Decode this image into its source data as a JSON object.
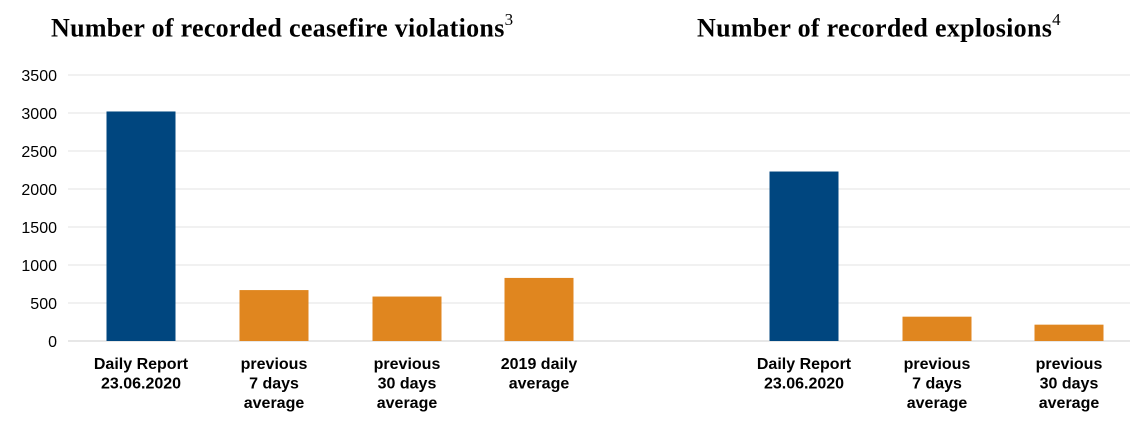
{
  "colors": {
    "primary": "#00467f",
    "secondary": "#e0861f",
    "grid": "#e3e3e3"
  },
  "chart_data": [
    {
      "type": "bar",
      "title": "Number of recorded ceasefire violations",
      "title_footnote": "3",
      "categories": [
        [
          "Daily Report",
          "23.06.2020"
        ],
        [
          "previous",
          "7 days",
          "average"
        ],
        [
          "previous",
          "30 days",
          "average"
        ],
        [
          "2019 daily",
          "average"
        ]
      ],
      "values": [
        3020,
        670,
        585,
        830
      ],
      "colors": [
        "#00467f",
        "#e0861f",
        "#e0861f",
        "#e0861f"
      ],
      "ylim": [
        0,
        3500
      ],
      "yticks": [
        "0",
        "500",
        "1000",
        "1500",
        "2000",
        "2500",
        "3000",
        "3500"
      ],
      "grid": true
    },
    {
      "type": "bar",
      "title": "Number of recorded explosions",
      "title_footnote": "4",
      "categories": [
        [
          "Daily Report",
          "23.06.2020"
        ],
        [
          "previous",
          "7 days",
          "average"
        ],
        [
          "previous",
          "30 days",
          "average"
        ]
      ],
      "values": [
        2230,
        320,
        215
      ],
      "colors": [
        "#00467f",
        "#e0861f",
        "#e0861f"
      ],
      "ylim": [
        0,
        3500
      ],
      "grid": true
    }
  ]
}
